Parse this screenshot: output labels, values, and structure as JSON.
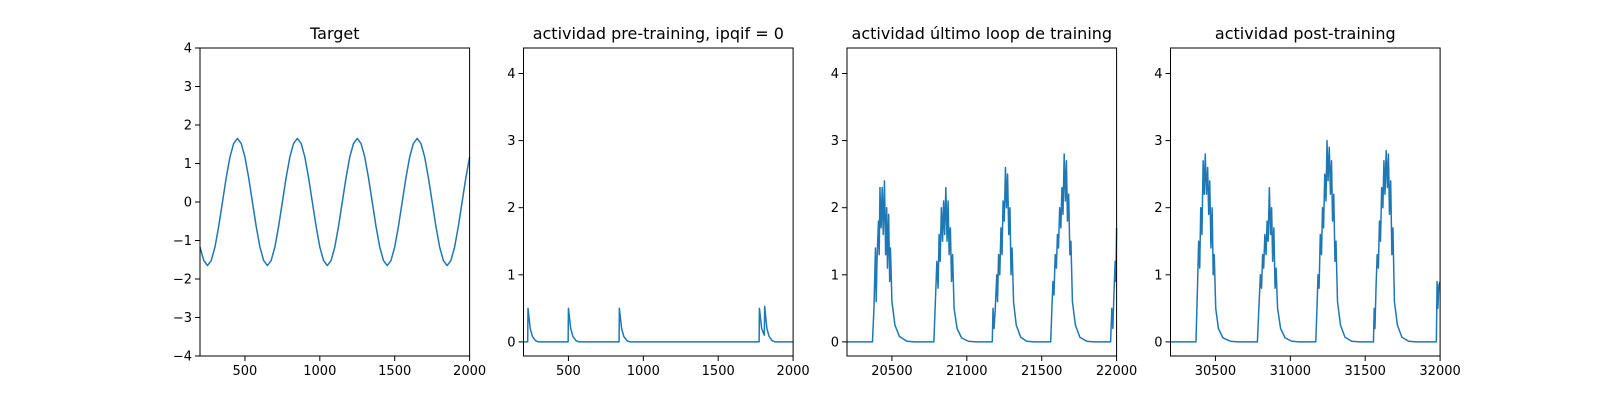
{
  "chart_data": [
    {
      "type": "line",
      "title": "Target",
      "color": "#1f77b4",
      "x": [
        200,
        225,
        250,
        275,
        300,
        325,
        350,
        375,
        400,
        425,
        450,
        475,
        500,
        525,
        550,
        575,
        600,
        625,
        650,
        675,
        700,
        725,
        750,
        775,
        800,
        825,
        850,
        875,
        900,
        925,
        950,
        975,
        1000,
        1025,
        1050,
        1075,
        1100,
        1125,
        1150,
        1175,
        1200,
        1225,
        1250,
        1275,
        1300,
        1325,
        1350,
        1375,
        1400,
        1425,
        1450,
        1475,
        1500,
        1525,
        1550,
        1575,
        1600,
        1625,
        1650,
        1675,
        1700,
        1725,
        1750,
        1775,
        1800,
        1825,
        1850,
        1875,
        1900,
        1925,
        1950,
        1975,
        2000
      ],
      "values": [
        -1.17,
        -1.52,
        -1.65,
        -1.52,
        -1.17,
        -0.63,
        0,
        0.63,
        1.17,
        1.52,
        1.65,
        1.52,
        1.17,
        0.63,
        0,
        -0.63,
        -1.17,
        -1.52,
        -1.65,
        -1.52,
        -1.17,
        -0.63,
        0,
        0.63,
        1.17,
        1.52,
        1.65,
        1.52,
        1.17,
        0.63,
        0,
        -0.63,
        -1.17,
        -1.52,
        -1.65,
        -1.52,
        -1.17,
        -0.63,
        0,
        0.63,
        1.17,
        1.52,
        1.65,
        1.52,
        1.17,
        0.63,
        0,
        -0.63,
        -1.17,
        -1.52,
        -1.65,
        -1.52,
        -1.17,
        -0.63,
        0,
        0.63,
        1.17,
        1.52,
        1.65,
        1.52,
        1.17,
        0.63,
        0,
        -0.63,
        -1.17,
        -1.52,
        -1.65,
        -1.52,
        -1.17,
        -0.63,
        0,
        0.63,
        1.17
      ],
      "xlim": [
        200,
        2000
      ],
      "ylim": [
        -4,
        4
      ],
      "xticks": [
        500,
        1000,
        1500,
        2000
      ],
      "yticks": [
        {
          "value": -4,
          "label": "−4"
        },
        {
          "value": -3,
          "label": "−3"
        },
        {
          "value": -2,
          "label": "−2"
        },
        {
          "value": -1,
          "label": "−1"
        },
        0,
        1,
        2,
        3,
        4
      ]
    },
    {
      "type": "line",
      "title": "actividad pre-training, ipqif = 0",
      "color": "#1f77b4",
      "x": [
        200,
        228,
        230,
        245,
        260,
        280,
        300,
        498,
        500,
        515,
        530,
        550,
        570,
        838,
        840,
        855,
        870,
        890,
        910,
        1773,
        1775,
        1790,
        1808,
        1810,
        1825,
        1840,
        1860,
        1880,
        2000
      ],
      "values": [
        0,
        0,
        0.5,
        0.2,
        0.08,
        0.02,
        0,
        0,
        0.5,
        0.2,
        0.08,
        0.02,
        0,
        0,
        0.5,
        0.2,
        0.08,
        0.02,
        0,
        0,
        0.5,
        0.2,
        0.1,
        0.53,
        0.2,
        0.08,
        0.02,
        0,
        0
      ],
      "xlim": [
        200,
        2000
      ],
      "ylim": [
        -0.21,
        4.38
      ],
      "xticks": [
        500,
        1000,
        1500,
        2000
      ],
      "yticks": [
        0,
        1,
        2,
        3,
        4
      ]
    },
    {
      "type": "line",
      "title": "actividad último loop de training",
      "color": "#1f77b4",
      "x": [
        20200,
        20370,
        20380,
        20390,
        20395,
        20400,
        20410,
        20415,
        20420,
        20428,
        20435,
        20442,
        20450,
        20458,
        20465,
        20470,
        20478,
        20485,
        20490,
        20500,
        20520,
        20550,
        20600,
        20650,
        20780,
        20790,
        20800,
        20808,
        20815,
        20822,
        20830,
        20838,
        20845,
        20852,
        20860,
        20868,
        20875,
        20882,
        20890,
        20898,
        20905,
        20915,
        20935,
        20965,
        21010,
        21060,
        21170,
        21175,
        21182,
        21190,
        21200,
        21205,
        21212,
        21220,
        21228,
        21235,
        21242,
        21250,
        21258,
        21265,
        21272,
        21280,
        21288,
        21295,
        21302,
        21312,
        21330,
        21360,
        21400,
        21450,
        21560,
        21568,
        21575,
        21582,
        21590,
        21598,
        21605,
        21612,
        21620,
        21628,
        21635,
        21642,
        21650,
        21658,
        21665,
        21672,
        21680,
        21688,
        21695,
        21705,
        21725,
        21755,
        21800,
        21850,
        21960,
        21968,
        21975,
        21982,
        21990,
        21995,
        22000
      ],
      "values": [
        0,
        0,
        0.5,
        1.4,
        0.6,
        1.2,
        1.8,
        1.3,
        2.3,
        1.7,
        2.3,
        1.6,
        2.4,
        1.3,
        2.0,
        1.1,
        1.9,
        0.9,
        1.4,
        0.6,
        0.25,
        0.08,
        0.01,
        0,
        0,
        0.6,
        1.2,
        0.8,
        1.6,
        1.2,
        2.0,
        1.5,
        2.1,
        1.6,
        2.3,
        1.5,
        2.1,
        1.3,
        1.7,
        0.9,
        1.3,
        0.5,
        0.2,
        0.06,
        0.01,
        0,
        0,
        0.5,
        0.2,
        0.5,
        1.0,
        0.6,
        1.3,
        1.0,
        1.7,
        1.3,
        2.1,
        1.8,
        2.6,
        2.0,
        2.5,
        1.6,
        2.0,
        1.0,
        1.4,
        0.6,
        0.25,
        0.07,
        0.01,
        0,
        0,
        0.5,
        0.9,
        0.7,
        1.3,
        1.1,
        1.6,
        1.4,
        2.0,
        1.7,
        2.3,
        1.9,
        2.8,
        2.1,
        2.7,
        1.8,
        2.2,
        1.3,
        1.5,
        0.6,
        0.25,
        0.07,
        0.01,
        0,
        0,
        0.5,
        0.2,
        0.7,
        1.2,
        0.9,
        1.7
      ],
      "xlim": [
        20200,
        22000
      ],
      "ylim": [
        -0.21,
        4.38
      ],
      "xticks": [
        20500,
        21000,
        21500,
        22000
      ],
      "yticks": [
        0,
        1,
        2,
        3,
        4
      ]
    },
    {
      "type": "line",
      "title": "actividad post-training",
      "color": "#1f77b4",
      "x": [
        30200,
        30370,
        30380,
        30388,
        30395,
        30402,
        30410,
        30418,
        30425,
        30432,
        30440,
        30448,
        30455,
        30462,
        30470,
        30478,
        30485,
        30492,
        30502,
        30520,
        30550,
        30600,
        30650,
        30780,
        30790,
        30800,
        30808,
        30815,
        30822,
        30830,
        30838,
        30845,
        30852,
        30860,
        30868,
        30875,
        30882,
        30890,
        30898,
        30905,
        30915,
        30935,
        30965,
        31010,
        31060,
        31170,
        31178,
        31185,
        31192,
        31200,
        31208,
        31215,
        31222,
        31230,
        31238,
        31245,
        31252,
        31260,
        31268,
        31275,
        31282,
        31290,
        31298,
        31305,
        31315,
        31335,
        31365,
        31410,
        31460,
        31555,
        31560,
        31565,
        31572,
        31580,
        31588,
        31595,
        31602,
        31610,
        31618,
        31625,
        31632,
        31640,
        31648,
        31655,
        31662,
        31670,
        31678,
        31685,
        31695,
        31715,
        31745,
        31790,
        31840,
        31975,
        31980,
        31985,
        31992,
        32000
      ],
      "values": [
        0,
        0,
        0.8,
        1.5,
        1.1,
        2.0,
        1.6,
        2.7,
        2.2,
        2.8,
        2.2,
        2.6,
        1.9,
        2.4,
        1.4,
        2.0,
        1.0,
        1.3,
        0.5,
        0.2,
        0.06,
        0.01,
        0,
        0,
        0.5,
        1.0,
        0.8,
        1.3,
        1.1,
        1.6,
        1.3,
        1.8,
        1.5,
        2.3,
        1.6,
        2.0,
        1.2,
        1.7,
        0.8,
        1.1,
        0.5,
        0.2,
        0.06,
        0.01,
        0,
        0,
        0.5,
        1.0,
        0.8,
        1.6,
        1.3,
        2.0,
        1.7,
        2.5,
        2.1,
        3.0,
        2.4,
        2.9,
        2.2,
        2.7,
        1.8,
        2.2,
        1.2,
        1.5,
        0.6,
        0.25,
        0.07,
        0.01,
        0,
        0,
        0.5,
        0.2,
        0.8,
        1.3,
        1.1,
        1.8,
        1.5,
        2.3,
        2.0,
        2.7,
        2.2,
        2.85,
        2.3,
        2.8,
        1.9,
        2.4,
        1.3,
        1.7,
        0.6,
        0.25,
        0.07,
        0.01,
        0,
        0,
        0.9,
        0.5,
        0.85,
        0.9
      ],
      "xlim": [
        30200,
        32000
      ],
      "ylim": [
        -0.21,
        4.38
      ],
      "xticks": [
        30500,
        31000,
        31500,
        32000
      ],
      "yticks": [
        0,
        1,
        2,
        3,
        4
      ]
    }
  ]
}
